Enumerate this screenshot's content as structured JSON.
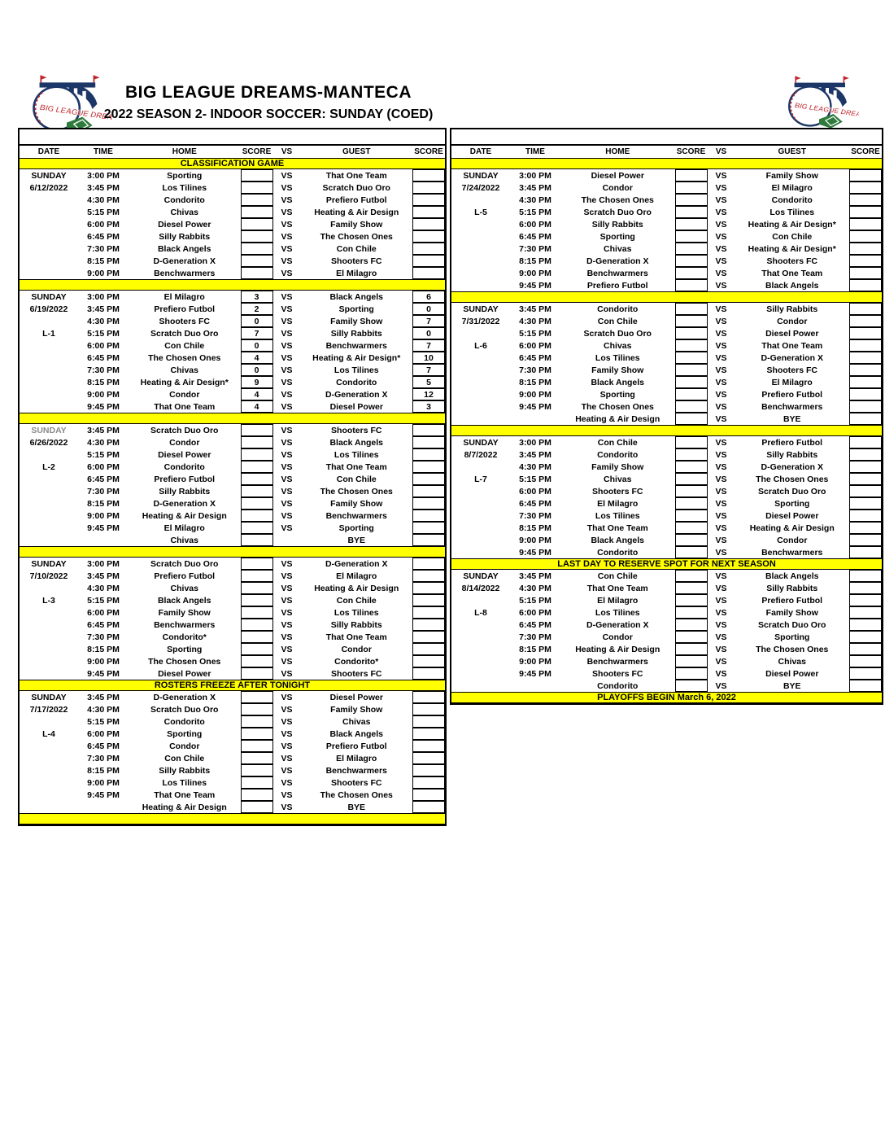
{
  "header": {
    "title": "BIG LEAGUE DREAMS-MANTECA",
    "subtitle": "2022 SEASON 2- INDOOR SOCCER: SUNDAY (COED)",
    "logo_text": "BIG LEAGUE DREAMS"
  },
  "colors": {
    "banner_yellow": "#ffff00",
    "logo_navy": "#1c3667",
    "logo_red": "#c0272d",
    "logo_green": "#2f7a3d"
  },
  "col_headers": [
    "DATE",
    "TIME",
    "HOME",
    "SCORE",
    "VS",
    "GUEST",
    "SCORE"
  ],
  "left_table": {
    "top_banner": "CLASSIFICATION GAME",
    "sections": [
      {
        "day": "SUNDAY",
        "date": "6/12/2022",
        "league": "",
        "day_muted": false,
        "banner_after": "",
        "rows": [
          [
            "3:00 PM",
            "Sporting",
            "",
            "VS",
            "That One Team",
            ""
          ],
          [
            "3:45 PM",
            "Los Tilines",
            "",
            "VS",
            "Scratch Duo Oro",
            ""
          ],
          [
            "4:30 PM",
            "Condorito",
            "",
            "VS",
            "Prefiero Futbol",
            ""
          ],
          [
            "5:15 PM",
            "Chivas",
            "",
            "VS",
            "Heating & Air Design",
            ""
          ],
          [
            "6:00 PM",
            "Diesel Power",
            "",
            "VS",
            "Family Show",
            ""
          ],
          [
            "6:45 PM",
            "Silly Rabbits",
            "",
            "VS",
            "The Chosen Ones",
            ""
          ],
          [
            "7:30 PM",
            "Black Angels",
            "",
            "VS",
            "Con Chile",
            ""
          ],
          [
            "8:15 PM",
            "D-Generation X",
            "",
            "VS",
            "Shooters FC",
            ""
          ],
          [
            "9:00 PM",
            "Benchwarmers",
            "",
            "VS",
            "El Milagro",
            ""
          ]
        ]
      },
      {
        "day": "SUNDAY",
        "date": "6/19/2022",
        "league": "L-1",
        "day_muted": false,
        "banner_after": "",
        "rows": [
          [
            "3:00 PM",
            "El Milagro",
            "3",
            "VS",
            "Black Angels",
            "6"
          ],
          [
            "3:45 PM",
            "Prefiero Futbol",
            "2",
            "VS",
            "Sporting",
            "0"
          ],
          [
            "4:30 PM",
            "Shooters FC",
            "0",
            "VS",
            "Family Show",
            "7"
          ],
          [
            "5:15 PM",
            "Scratch Duo Oro",
            "7",
            "VS",
            "Silly Rabbits",
            "0"
          ],
          [
            "6:00 PM",
            "Con Chile",
            "0",
            "VS",
            "Benchwarmers",
            "7"
          ],
          [
            "6:45 PM",
            "The Chosen Ones",
            "4",
            "VS",
            "Heating & Air Design*",
            "10"
          ],
          [
            "7:30 PM",
            "Chivas",
            "0",
            "VS",
            "Los Tilines",
            "7"
          ],
          [
            "8:15 PM",
            "Heating & Air Design*",
            "9",
            "VS",
            "Condorito",
            "5"
          ],
          [
            "9:00 PM",
            "Condor",
            "4",
            "VS",
            "D-Generation X",
            "12"
          ],
          [
            "9:45 PM",
            "That One Team",
            "4",
            "VS",
            "Diesel Power",
            "3"
          ]
        ]
      },
      {
        "day": "SUNDAY",
        "date": "6/26/2022",
        "league": "L-2",
        "day_muted": true,
        "banner_after": "",
        "rows": [
          [
            "3:45 PM",
            "Scratch Duo Oro",
            "",
            "VS",
            "Shooters FC",
            ""
          ],
          [
            "4:30 PM",
            "Condor",
            "",
            "VS",
            "Black Angels",
            ""
          ],
          [
            "5:15 PM",
            "Diesel Power",
            "",
            "VS",
            "Los Tilines",
            ""
          ],
          [
            "6:00 PM",
            "Condorito",
            "",
            "VS",
            "That One Team",
            ""
          ],
          [
            "6:45 PM",
            "Prefiero Futbol",
            "",
            "VS",
            "Con Chile",
            ""
          ],
          [
            "7:30 PM",
            "Silly Rabbits",
            "",
            "VS",
            "The Chosen Ones",
            ""
          ],
          [
            "8:15 PM",
            "D-Generation X",
            "",
            "VS",
            "Family Show",
            ""
          ],
          [
            "9:00 PM",
            "Heating & Air Design",
            "",
            "VS",
            "Benchwarmers",
            ""
          ],
          [
            "9:45 PM",
            "El Milagro",
            "",
            "VS",
            "Sporting",
            ""
          ],
          [
            "",
            "Chivas",
            "",
            "",
            "BYE",
            ""
          ]
        ]
      },
      {
        "day": "SUNDAY",
        "date": "7/10/2022",
        "league": "L-3",
        "day_muted": false,
        "banner_after": "ROSTERS FREEZE AFTER TONIGHT",
        "rows": [
          [
            "3:00 PM",
            "Scratch Duo Oro",
            "",
            "VS",
            "D-Generation X",
            ""
          ],
          [
            "3:45 PM",
            "Prefiero Futbol",
            "",
            "VS",
            "El Milagro",
            ""
          ],
          [
            "4:30 PM",
            "Chivas",
            "",
            "VS",
            "Heating & Air Design",
            ""
          ],
          [
            "5:15 PM",
            "Black Angels",
            "",
            "VS",
            "Con Chile",
            ""
          ],
          [
            "6:00 PM",
            "Family Show",
            "",
            "VS",
            "Los Tilines",
            ""
          ],
          [
            "6:45 PM",
            "Benchwarmers",
            "",
            "VS",
            "Silly Rabbits",
            ""
          ],
          [
            "7:30 PM",
            "Condorito*",
            "",
            "VS",
            "That One Team",
            ""
          ],
          [
            "8:15 PM",
            "Sporting",
            "",
            "VS",
            "Condor",
            ""
          ],
          [
            "9:00 PM",
            "The Chosen Ones",
            "",
            "VS",
            "Condorito*",
            ""
          ],
          [
            "9:45 PM",
            "Diesel Power",
            "",
            "VS",
            "Shooters FC",
            ""
          ]
        ]
      },
      {
        "day": "SUNDAY",
        "date": "7/17/2022",
        "league": "L-4",
        "day_muted": false,
        "banner_after": "",
        "rows": [
          [
            "3:45 PM",
            "D-Generation X",
            "",
            "VS",
            "Diesel Power",
            ""
          ],
          [
            "4:30 PM",
            "Scratch Duo Oro",
            "",
            "VS",
            "Family Show",
            ""
          ],
          [
            "5:15 PM",
            "Condorito",
            "",
            "VS",
            "Chivas",
            ""
          ],
          [
            "6:00 PM",
            "Sporting",
            "",
            "VS",
            "Black Angels",
            ""
          ],
          [
            "6:45 PM",
            "Condor",
            "",
            "VS",
            "Prefiero Futbol",
            ""
          ],
          [
            "7:30 PM",
            "Con Chile",
            "",
            "VS",
            "El Milagro",
            ""
          ],
          [
            "8:15 PM",
            "Silly Rabbits",
            "",
            "VS",
            "Benchwarmers",
            ""
          ],
          [
            "9:00 PM",
            "Los Tilines",
            "",
            "VS",
            "Shooters FC",
            ""
          ],
          [
            "9:45 PM",
            "That One Team",
            "",
            "VS",
            "The Chosen Ones",
            ""
          ],
          [
            "",
            "Heating & Air Design",
            "",
            "VS",
            "BYE",
            ""
          ]
        ]
      }
    ]
  },
  "right_table": {
    "top_banner": "",
    "sections": [
      {
        "day": "SUNDAY",
        "date": "7/24/2022",
        "league": "L-5",
        "day_muted": false,
        "banner_after": "",
        "rows": [
          [
            "3:00 PM",
            "Diesel Power",
            "",
            "VS",
            "Family Show",
            ""
          ],
          [
            "3:45 PM",
            "Condor",
            "",
            "VS",
            "El Milagro",
            ""
          ],
          [
            "4:30 PM",
            "The Chosen Ones",
            "",
            "VS",
            "Condorito",
            ""
          ],
          [
            "5:15 PM",
            "Scratch Duo Oro",
            "",
            "VS",
            "Los Tilines",
            ""
          ],
          [
            "6:00 PM",
            "Silly Rabbits",
            "",
            "VS",
            "Heating & Air Design*",
            ""
          ],
          [
            "6:45 PM",
            "Sporting",
            "",
            "VS",
            "Con Chile",
            ""
          ],
          [
            "7:30 PM",
            "Chivas",
            "",
            "VS",
            "Heating & Air Design*",
            ""
          ],
          [
            "8:15 PM",
            "D-Generation X",
            "",
            "VS",
            "Shooters FC",
            ""
          ],
          [
            "9:00 PM",
            "Benchwarmers",
            "",
            "VS",
            "That One Team",
            ""
          ],
          [
            "9:45 PM",
            "Prefiero Futbol",
            "",
            "VS",
            "Black Angels",
            ""
          ]
        ]
      },
      {
        "day": "SUNDAY",
        "date": "7/31/2022",
        "league": "L-6",
        "day_muted": false,
        "banner_after": "",
        "rows": [
          [
            "3:45 PM",
            "Condorito",
            "",
            "VS",
            "Silly Rabbits",
            ""
          ],
          [
            "4:30 PM",
            "Con Chile",
            "",
            "VS",
            "Condor",
            ""
          ],
          [
            "5:15 PM",
            "Scratch Duo Oro",
            "",
            "VS",
            "Diesel Power",
            ""
          ],
          [
            "6:00 PM",
            "Chivas",
            "",
            "VS",
            "That One Team",
            ""
          ],
          [
            "6:45 PM",
            "Los Tilines",
            "",
            "VS",
            "D-Generation X",
            ""
          ],
          [
            "7:30 PM",
            "Family Show",
            "",
            "VS",
            "Shooters FC",
            ""
          ],
          [
            "8:15 PM",
            "Black Angels",
            "",
            "VS",
            "El Milagro",
            ""
          ],
          [
            "9:00 PM",
            "Sporting",
            "",
            "VS",
            "Prefiero Futbol",
            ""
          ],
          [
            "9:45 PM",
            "The Chosen Ones",
            "",
            "VS",
            "Benchwarmers",
            ""
          ],
          [
            "",
            "Heating & Air Design",
            "",
            "VS",
            "BYE",
            ""
          ]
        ]
      },
      {
        "day": "SUNDAY",
        "date": "8/7/2022",
        "league": "L-7",
        "day_muted": false,
        "banner_after": "LAST DAY TO RESERVE SPOT FOR NEXT SEASON",
        "rows": [
          [
            "3:00 PM",
            "Con Chile",
            "",
            "VS",
            "Prefiero Futbol",
            ""
          ],
          [
            "3:45 PM",
            "Condorito",
            "",
            "VS",
            "Silly Rabbits",
            ""
          ],
          [
            "4:30 PM",
            "Family Show",
            "",
            "VS",
            "D-Generation X",
            ""
          ],
          [
            "5:15 PM",
            "Chivas",
            "",
            "VS",
            "The Chosen Ones",
            ""
          ],
          [
            "6:00 PM",
            "Shooters FC",
            "",
            "VS",
            "Scratch Duo Oro",
            ""
          ],
          [
            "6:45 PM",
            "El Milagro",
            "",
            "VS",
            "Sporting",
            ""
          ],
          [
            "7:30 PM",
            "Los Tilines",
            "",
            "VS",
            "Diesel Power",
            ""
          ],
          [
            "8:15 PM",
            "That One Team",
            "",
            "VS",
            "Heating & Air Design",
            ""
          ],
          [
            "9:00 PM",
            "Black Angels",
            "",
            "VS",
            "Condor",
            ""
          ],
          [
            "9:45 PM",
            "Condorito",
            "",
            "VS",
            "Benchwarmers",
            ""
          ]
        ]
      },
      {
        "day": "SUNDAY",
        "date": "8/14/2022",
        "league": "L-8",
        "day_muted": false,
        "banner_after": "PLAYOFFS BEGIN March 6, 2022",
        "rows": [
          [
            "3:45 PM",
            "Con Chile",
            "",
            "VS",
            "Black Angels",
            ""
          ],
          [
            "4:30 PM",
            "That One Team",
            "",
            "VS",
            "Silly Rabbits",
            ""
          ],
          [
            "5:15 PM",
            "El Milagro",
            "",
            "VS",
            "Prefiero Futbol",
            ""
          ],
          [
            "6:00 PM",
            "Los Tilines",
            "",
            "VS",
            "Family Show",
            ""
          ],
          [
            "6:45 PM",
            "D-Generation X",
            "",
            "VS",
            "Scratch Duo Oro",
            ""
          ],
          [
            "7:30 PM",
            "Condor",
            "",
            "VS",
            "Sporting",
            ""
          ],
          [
            "8:15 PM",
            "Heating & Air Design",
            "",
            "VS",
            "The Chosen Ones",
            ""
          ],
          [
            "9:00 PM",
            "Benchwarmers",
            "",
            "VS",
            "Chivas",
            ""
          ],
          [
            "9:45 PM",
            "Shooters FC",
            "",
            "VS",
            "Diesel Power",
            ""
          ],
          [
            "",
            "Condorito",
            "",
            "VS",
            "BYE",
            ""
          ]
        ]
      }
    ]
  }
}
